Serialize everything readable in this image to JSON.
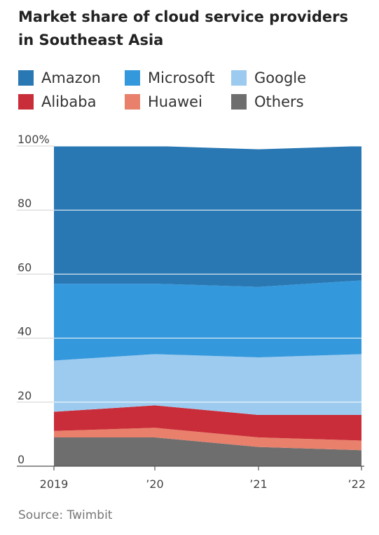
{
  "title": "Market share of cloud service providers in Southeast Asia",
  "source": "Source: Twimbit",
  "chart_data": {
    "type": "area",
    "stacked": true,
    "x": [
      "2019",
      "’20",
      "’21",
      "’22"
    ],
    "ylim": [
      0,
      100
    ],
    "yticks": [
      0,
      20,
      40,
      60,
      80,
      100
    ],
    "ytick_labels": [
      "0",
      "20",
      "40",
      "60",
      "80",
      "100%"
    ],
    "grid": true,
    "legend_position": "top",
    "series": [
      {
        "name": "Others",
        "color": "#6e6e6e",
        "values": [
          9,
          9,
          6,
          5
        ]
      },
      {
        "name": "Huawei",
        "color": "#e8806b",
        "values": [
          2,
          3,
          3,
          3
        ]
      },
      {
        "name": "Alibaba",
        "color": "#c92d39",
        "values": [
          6,
          7,
          7,
          8
        ]
      },
      {
        "name": "Google",
        "color": "#9ccbef",
        "values": [
          16,
          16,
          18,
          19
        ]
      },
      {
        "name": "Microsoft",
        "color": "#3498dc",
        "values": [
          24,
          22,
          22,
          23
        ]
      },
      {
        "name": "Amazon",
        "color": "#2a78b3",
        "values": [
          43,
          43,
          43,
          42
        ]
      }
    ]
  }
}
